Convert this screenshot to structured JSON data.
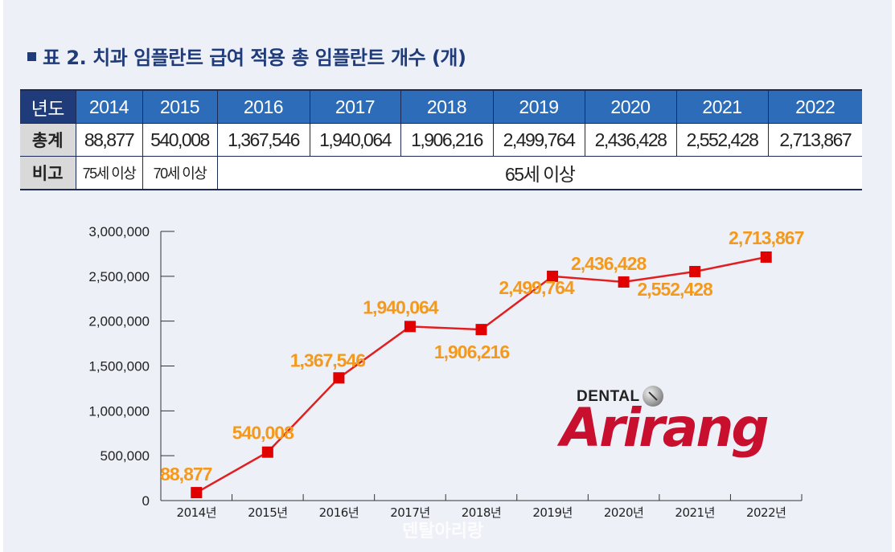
{
  "title": "표 2. 치과 임플란트 급여 적용 총 임플란트 개수 (개)",
  "table": {
    "header_label": "년도",
    "years": [
      "2014",
      "2015",
      "2016",
      "2017",
      "2018",
      "2019",
      "2020",
      "2021",
      "2022"
    ],
    "total_label": "총계",
    "totals": [
      "88,877",
      "540,008",
      "1,367,546",
      "1,940,064",
      "1,906,216",
      "2,499,764",
      "2,436,428",
      "2,552,428",
      "2,713,867"
    ],
    "note_label": "비고",
    "notes": [
      "75세 이상",
      "70세 이상",
      "65세 이상"
    ]
  },
  "logo": {
    "small": "DENTAL",
    "brand": "Arirang"
  },
  "watermark": "덴탈아리랑",
  "colors": {
    "line": "#e02020",
    "marker": "#e00000",
    "label": "#f39a1e",
    "header": "#2d6cb8",
    "header_dark": "#1f3b7a"
  },
  "chart_data": {
    "type": "line",
    "categories": [
      "2014년",
      "2015년",
      "2016년",
      "2017년",
      "2018년",
      "2019년",
      "2020년",
      "2021년",
      "2022년"
    ],
    "values": [
      88877,
      540008,
      1367546,
      1940064,
      1906216,
      2499764,
      2436428,
      2552428,
      2713867
    ],
    "data_labels": [
      "88,877",
      "540,008",
      "1,367,546",
      "1,940,064",
      "1,906,216",
      "2,499,764",
      "2,436,428",
      "2,552,428",
      "2,713,867"
    ],
    "yticks": [
      "0",
      "500,000",
      "1,000,000",
      "1,500,000",
      "2,000,000",
      "2,500,000",
      "3,000,000"
    ],
    "ylim": [
      0,
      3000000
    ],
    "grid": false,
    "legend": "none"
  }
}
